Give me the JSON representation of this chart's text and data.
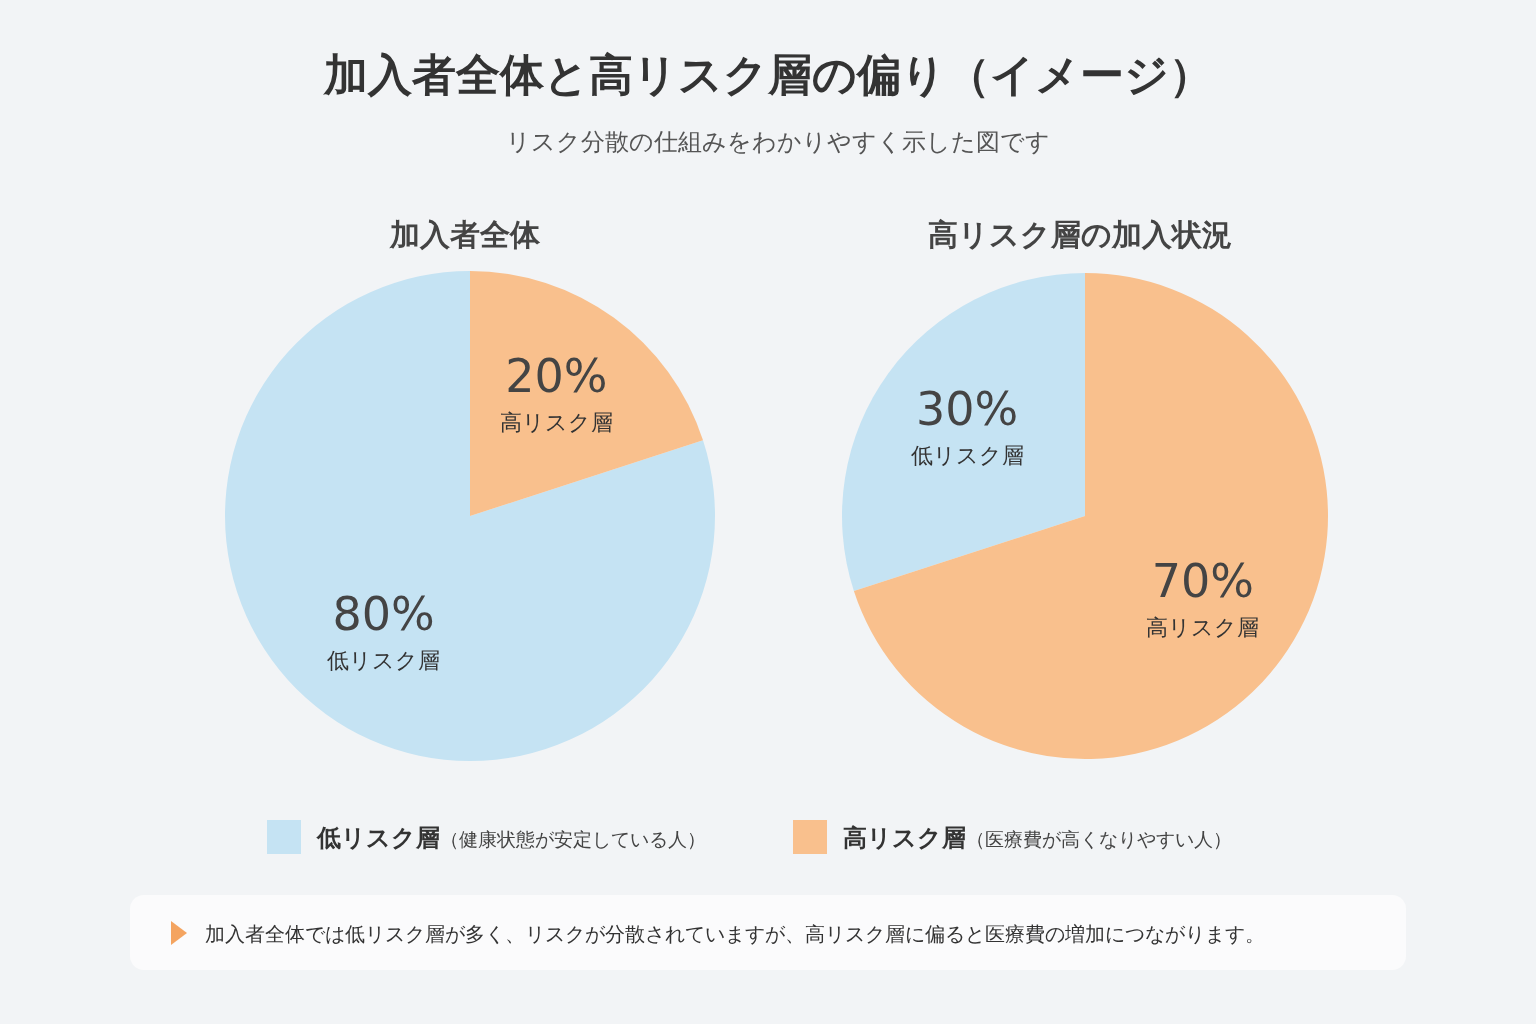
{
  "chart_data": [
    {
      "type": "pie",
      "title": "加入者全体",
      "categories": [
        "低リスク層",
        "高リスク層"
      ],
      "values": [
        80,
        20
      ],
      "colors": [
        "#c5e3f3",
        "#f9c08d"
      ],
      "value_labels": [
        "80%",
        "20%"
      ],
      "legend": "bottom",
      "annotations": [
        "加入者全体と高リスク層の偏り（イメージ）",
        "リスク分散の仕組みをわかりやすく示した図です",
        "（健康状態が安定している人）",
        "（医療費が高くなりやすい人）",
        "加入者全体では低リスク層が多く、リスクが分散されていますが、高リスク層に偏ると医療費の増加につながります。"
      ]
    },
    {
      "type": "pie",
      "title": "高リスク層の加入状況",
      "categories": [
        "低リスク層",
        "高リスク層"
      ],
      "values": [
        30,
        70
      ],
      "colors": [
        "#c5e3f3",
        "#f9c08d"
      ],
      "value_labels": [
        "30%",
        "70%"
      ]
    }
  ]
}
